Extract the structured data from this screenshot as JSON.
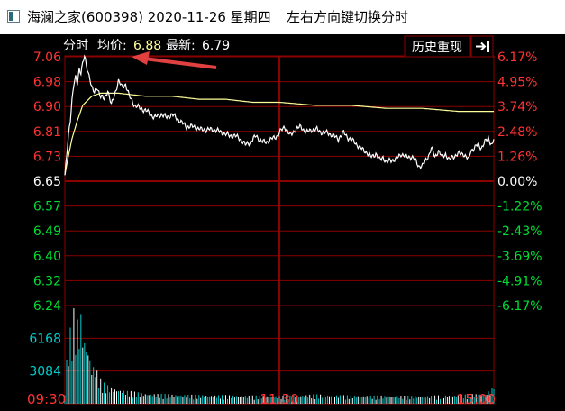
{
  "window": {
    "title": "海澜之家(600398) 2020-11-26 星期四",
    "hint": "左右方向键切换分时"
  },
  "header": {
    "label_fenshi": "分时",
    "label_avg": "均价:",
    "avg_value": "6.88",
    "label_latest": "最新:",
    "latest_value": "6.79",
    "history_button": "历史重现",
    "exit_icon": "exit-arrow-icon"
  },
  "colors": {
    "up": "#ff3333",
    "down": "#00dd33",
    "price_line": "#ffffff",
    "avg_line": "#ffff99",
    "volume_up": "#ffffff",
    "volume_down": "#00cccc",
    "grid": "#8b0000",
    "annotation_arrow": "#e04040"
  },
  "chart_data": {
    "type": "line",
    "title": "",
    "prev_close": 6.65,
    "price_axis": {
      "ylim": [
        6.24,
        7.06
      ],
      "left_ticks": [
        "7.06",
        "6.98",
        "6.90",
        "6.81",
        "6.73",
        "6.65",
        "6.57",
        "6.49",
        "6.40",
        "6.32",
        "6.24"
      ],
      "right_ticks": [
        "6.17%",
        "4.95%",
        "3.74%",
        "2.48%",
        "1.26%",
        "0.00%",
        "-1.22%",
        "-2.43%",
        "-3.69%",
        "-4.91%",
        "-6.17%"
      ]
    },
    "time_labels": [
      "09:30",
      "11:30",
      "15:00"
    ],
    "volume_axis": {
      "ylim": [
        0,
        9252
      ],
      "ticks": [
        "6168",
        "3084"
      ]
    },
    "price_keyframes": [
      [
        0,
        6.67
      ],
      [
        2,
        6.73
      ],
      [
        4,
        6.8
      ],
      [
        6,
        6.85
      ],
      [
        8,
        6.92
      ],
      [
        10,
        6.97
      ],
      [
        12,
        6.99
      ],
      [
        14,
        6.97
      ],
      [
        16,
        7.02
      ],
      [
        18,
        7.01
      ],
      [
        20,
        7.04
      ],
      [
        22,
        7.06
      ],
      [
        24,
        7.03
      ],
      [
        26,
        7.01
      ],
      [
        28,
        6.99
      ],
      [
        30,
        6.96
      ],
      [
        33,
        6.94
      ],
      [
        36,
        6.96
      ],
      [
        40,
        6.93
      ],
      [
        44,
        6.92
      ],
      [
        48,
        6.95
      ],
      [
        52,
        6.9
      ],
      [
        56,
        6.94
      ],
      [
        60,
        6.98
      ],
      [
        64,
        6.96
      ],
      [
        68,
        6.97
      ],
      [
        72,
        6.93
      ],
      [
        78,
        6.9
      ],
      [
        85,
        6.89
      ],
      [
        92,
        6.88
      ],
      [
        100,
        6.86
      ],
      [
        108,
        6.87
      ],
      [
        114,
        6.86
      ],
      [
        120,
        6.87
      ],
      [
        128,
        6.85
      ],
      [
        136,
        6.83
      ],
      [
        144,
        6.83
      ],
      [
        152,
        6.82
      ],
      [
        160,
        6.82
      ],
      [
        168,
        6.82
      ],
      [
        176,
        6.81
      ],
      [
        184,
        6.8
      ],
      [
        190,
        6.8
      ],
      [
        196,
        6.79
      ],
      [
        202,
        6.77
      ],
      [
        208,
        6.78
      ],
      [
        214,
        6.8
      ],
      [
        220,
        6.78
      ],
      [
        226,
        6.78
      ],
      [
        232,
        6.79
      ],
      [
        238,
        6.8
      ],
      [
        240,
        6.81
      ],
      [
        246,
        6.83
      ],
      [
        252,
        6.8
      ],
      [
        258,
        6.82
      ],
      [
        264,
        6.83
      ],
      [
        270,
        6.81
      ],
      [
        276,
        6.82
      ],
      [
        282,
        6.82
      ],
      [
        288,
        6.81
      ],
      [
        294,
        6.81
      ],
      [
        300,
        6.8
      ],
      [
        306,
        6.79
      ],
      [
        312,
        6.81
      ],
      [
        318,
        6.79
      ],
      [
        324,
        6.78
      ],
      [
        330,
        6.76
      ],
      [
        336,
        6.75
      ],
      [
        342,
        6.73
      ],
      [
        348,
        6.74
      ],
      [
        352,
        6.72
      ],
      [
        356,
        6.73
      ],
      [
        360,
        6.71
      ],
      [
        364,
        6.72
      ],
      [
        370,
        6.72
      ],
      [
        376,
        6.74
      ],
      [
        382,
        6.73
      ],
      [
        388,
        6.73
      ],
      [
        392,
        6.72
      ],
      [
        396,
        6.7
      ],
      [
        400,
        6.7
      ],
      [
        404,
        6.72
      ],
      [
        408,
        6.74
      ],
      [
        410,
        6.76
      ],
      [
        414,
        6.73
      ],
      [
        418,
        6.75
      ],
      [
        422,
        6.73
      ],
      [
        426,
        6.74
      ],
      [
        430,
        6.72
      ],
      [
        434,
        6.73
      ],
      [
        440,
        6.74
      ],
      [
        446,
        6.74
      ],
      [
        452,
        6.72
      ],
      [
        454,
        6.75
      ],
      [
        458,
        6.76
      ],
      [
        462,
        6.77
      ],
      [
        466,
        6.76
      ],
      [
        470,
        6.78
      ],
      [
        474,
        6.79
      ],
      [
        478,
        6.77
      ],
      [
        480,
        6.79
      ]
    ],
    "avg_keyframes": [
      [
        0,
        6.67
      ],
      [
        3,
        6.72
      ],
      [
        8,
        6.79
      ],
      [
        14,
        6.85
      ],
      [
        20,
        6.9
      ],
      [
        30,
        6.93
      ],
      [
        40,
        6.94
      ],
      [
        60,
        6.94
      ],
      [
        90,
        6.93
      ],
      [
        120,
        6.93
      ],
      [
        150,
        6.92
      ],
      [
        180,
        6.92
      ],
      [
        210,
        6.91
      ],
      [
        240,
        6.91
      ],
      [
        280,
        6.9
      ],
      [
        320,
        6.9
      ],
      [
        360,
        6.89
      ],
      [
        400,
        6.89
      ],
      [
        440,
        6.88
      ],
      [
        480,
        6.88
      ]
    ],
    "volume_profile": [
      [
        0,
        1200
      ],
      [
        3,
        5800
      ],
      [
        6,
        7200
      ],
      [
        9,
        9200
      ],
      [
        12,
        8600
      ],
      [
        15,
        7800
      ],
      [
        18,
        8900
      ],
      [
        21,
        6500
      ],
      [
        24,
        6000
      ],
      [
        27,
        5200
      ],
      [
        30,
        3600
      ],
      [
        34,
        3800
      ],
      [
        38,
        2600
      ],
      [
        45,
        1900
      ],
      [
        55,
        1500
      ],
      [
        70,
        1250
      ],
      [
        90,
        1000
      ],
      [
        120,
        900
      ],
      [
        150,
        850
      ],
      [
        200,
        800
      ],
      [
        240,
        760
      ],
      [
        280,
        900
      ],
      [
        320,
        800
      ],
      [
        360,
        780
      ],
      [
        400,
        760
      ],
      [
        440,
        850
      ],
      [
        470,
        1000
      ],
      [
        478,
        1500
      ],
      [
        480,
        2400
      ]
    ],
    "annotation": "red-arrow-pointing-at-high"
  }
}
